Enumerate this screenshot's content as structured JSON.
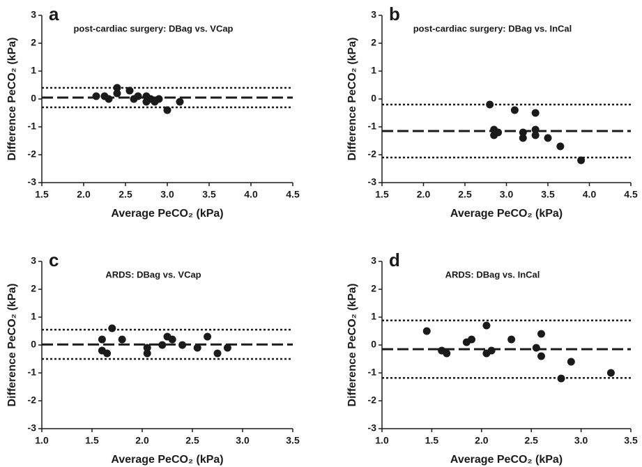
{
  "chart_data": [
    {
      "type": "scatter",
      "panel": "a",
      "title": "post-cardiac surgery: DBag vs. VCap",
      "x_label": "Average PeCO₂ (kPa)",
      "y_label": "Difference PeCO₂ (kPa)",
      "x": [
        2.15,
        2.25,
        2.3,
        2.4,
        2.4,
        2.55,
        2.6,
        2.65,
        2.75,
        2.75,
        2.8,
        2.85,
        2.9,
        3.0,
        3.15
      ],
      "values": [
        0.1,
        0.1,
        0.0,
        0.4,
        0.2,
        0.3,
        0.0,
        0.1,
        0.1,
        -0.1,
        0.0,
        -0.1,
        0.0,
        -0.4,
        -0.1
      ],
      "color": "#1a1a1a",
      "hlines": [
        {
          "value": 0.05,
          "style": "dashed"
        },
        {
          "value": 0.4,
          "style": "dotted"
        },
        {
          "value": -0.3,
          "style": "dotted"
        }
      ],
      "xlim": [
        1.5,
        4.5
      ],
      "xticks": [
        1.5,
        {
          "value": 2.0,
          "label": "2.0"
        },
        2.5,
        {
          "value": 3.0,
          "label": "3.0"
        },
        3.5,
        {
          "value": 4.0,
          "label": "4.0"
        },
        4.5
      ],
      "ylim": [
        -3,
        3
      ],
      "yticks": [
        -3,
        -2,
        -1,
        0,
        1,
        2,
        3
      ]
    },
    {
      "type": "scatter",
      "panel": "b",
      "title": "post-cardiac surgery: DBag vs. InCal",
      "x_label": "Average PeCO₂ (kPa)",
      "y_label": "Difference PeCO₂ (kPa)",
      "x": [
        2.8,
        2.85,
        2.85,
        2.9,
        3.1,
        3.2,
        3.2,
        3.35,
        3.35,
        3.35,
        3.5,
        3.65,
        3.9
      ],
      "values": [
        -0.2,
        -1.1,
        -1.3,
        -1.2,
        -0.4,
        -1.2,
        -1.4,
        -0.5,
        -1.1,
        -1.3,
        -1.4,
        -1.7,
        -2.2
      ],
      "color": "#1a1a1a",
      "hlines": [
        {
          "value": -1.15,
          "style": "dashed"
        },
        {
          "value": -0.2,
          "style": "dotted"
        },
        {
          "value": -2.1,
          "style": "dotted"
        }
      ],
      "xlim": [
        1.5,
        4.5
      ],
      "xticks": [
        1.5,
        {
          "value": 2.0,
          "label": "2.0"
        },
        2.5,
        {
          "value": 3.0,
          "label": "3.0"
        },
        3.5,
        {
          "value": 4.0,
          "label": "4.0"
        },
        4.5
      ],
      "ylim": [
        -3,
        3
      ],
      "yticks": [
        -3,
        -2,
        -1,
        0,
        1,
        2,
        3
      ]
    },
    {
      "type": "scatter",
      "panel": "c",
      "title": "ARDS: DBag vs. VCap",
      "x_label": "Average PeCO₂ (kPa)",
      "y_label": "Difference PeCO₂ (kPa)",
      "x": [
        1.6,
        1.6,
        1.65,
        1.7,
        1.8,
        2.05,
        2.05,
        2.2,
        2.25,
        2.3,
        2.4,
        2.55,
        2.65,
        2.75,
        2.85
      ],
      "values": [
        0.2,
        -0.2,
        -0.3,
        0.6,
        0.2,
        -0.1,
        -0.3,
        0.0,
        0.3,
        0.2,
        0.0,
        -0.1,
        0.3,
        -0.3,
        -0.1
      ],
      "color": "#1a1a1a",
      "hlines": [
        {
          "value": 0.02,
          "style": "dashed"
        },
        {
          "value": 0.55,
          "style": "dotted"
        },
        {
          "value": -0.5,
          "style": "dotted"
        }
      ],
      "xlim": [
        1.0,
        3.5
      ],
      "xticks": [
        {
          "value": 1.0,
          "label": "1.0"
        },
        1.5,
        {
          "value": 2.0,
          "label": "2.0"
        },
        2.5,
        {
          "value": 3.0,
          "label": "3.0"
        },
        3.5
      ],
      "ylim": [
        -3,
        3
      ],
      "yticks": [
        -3,
        -2,
        -1,
        0,
        1,
        2,
        3
      ]
    },
    {
      "type": "scatter",
      "panel": "d",
      "title": "ARDS: DBag vs. InCal",
      "x_label": "Average PeCO₂ (kPa)",
      "y_label": "Difference PeCO₂ (kPa)",
      "x": [
        1.45,
        1.6,
        1.65,
        1.85,
        1.9,
        2.05,
        2.05,
        2.1,
        2.3,
        2.55,
        2.6,
        2.6,
        2.8,
        2.9,
        3.3
      ],
      "values": [
        0.5,
        -0.2,
        -0.3,
        0.1,
        0.2,
        0.7,
        -0.3,
        -0.2,
        0.2,
        -0.1,
        0.4,
        -0.4,
        -1.2,
        -0.6,
        -1.0
      ],
      "color": "#1a1a1a",
      "hlines": [
        {
          "value": -0.15,
          "style": "dashed"
        },
        {
          "value": 0.88,
          "style": "dotted"
        },
        {
          "value": -1.18,
          "style": "dotted"
        }
      ],
      "xlim": [
        1.0,
        3.5
      ],
      "xticks": [
        {
          "value": 1.0,
          "label": "1.0"
        },
        1.5,
        {
          "value": 2.0,
          "label": "2.0"
        },
        2.5,
        {
          "value": 3.0,
          "label": "3.0"
        },
        3.5
      ],
      "ylim": [
        -3,
        3
      ],
      "yticks": [
        -3,
        -2,
        -1,
        0,
        1,
        2,
        3
      ]
    }
  ]
}
